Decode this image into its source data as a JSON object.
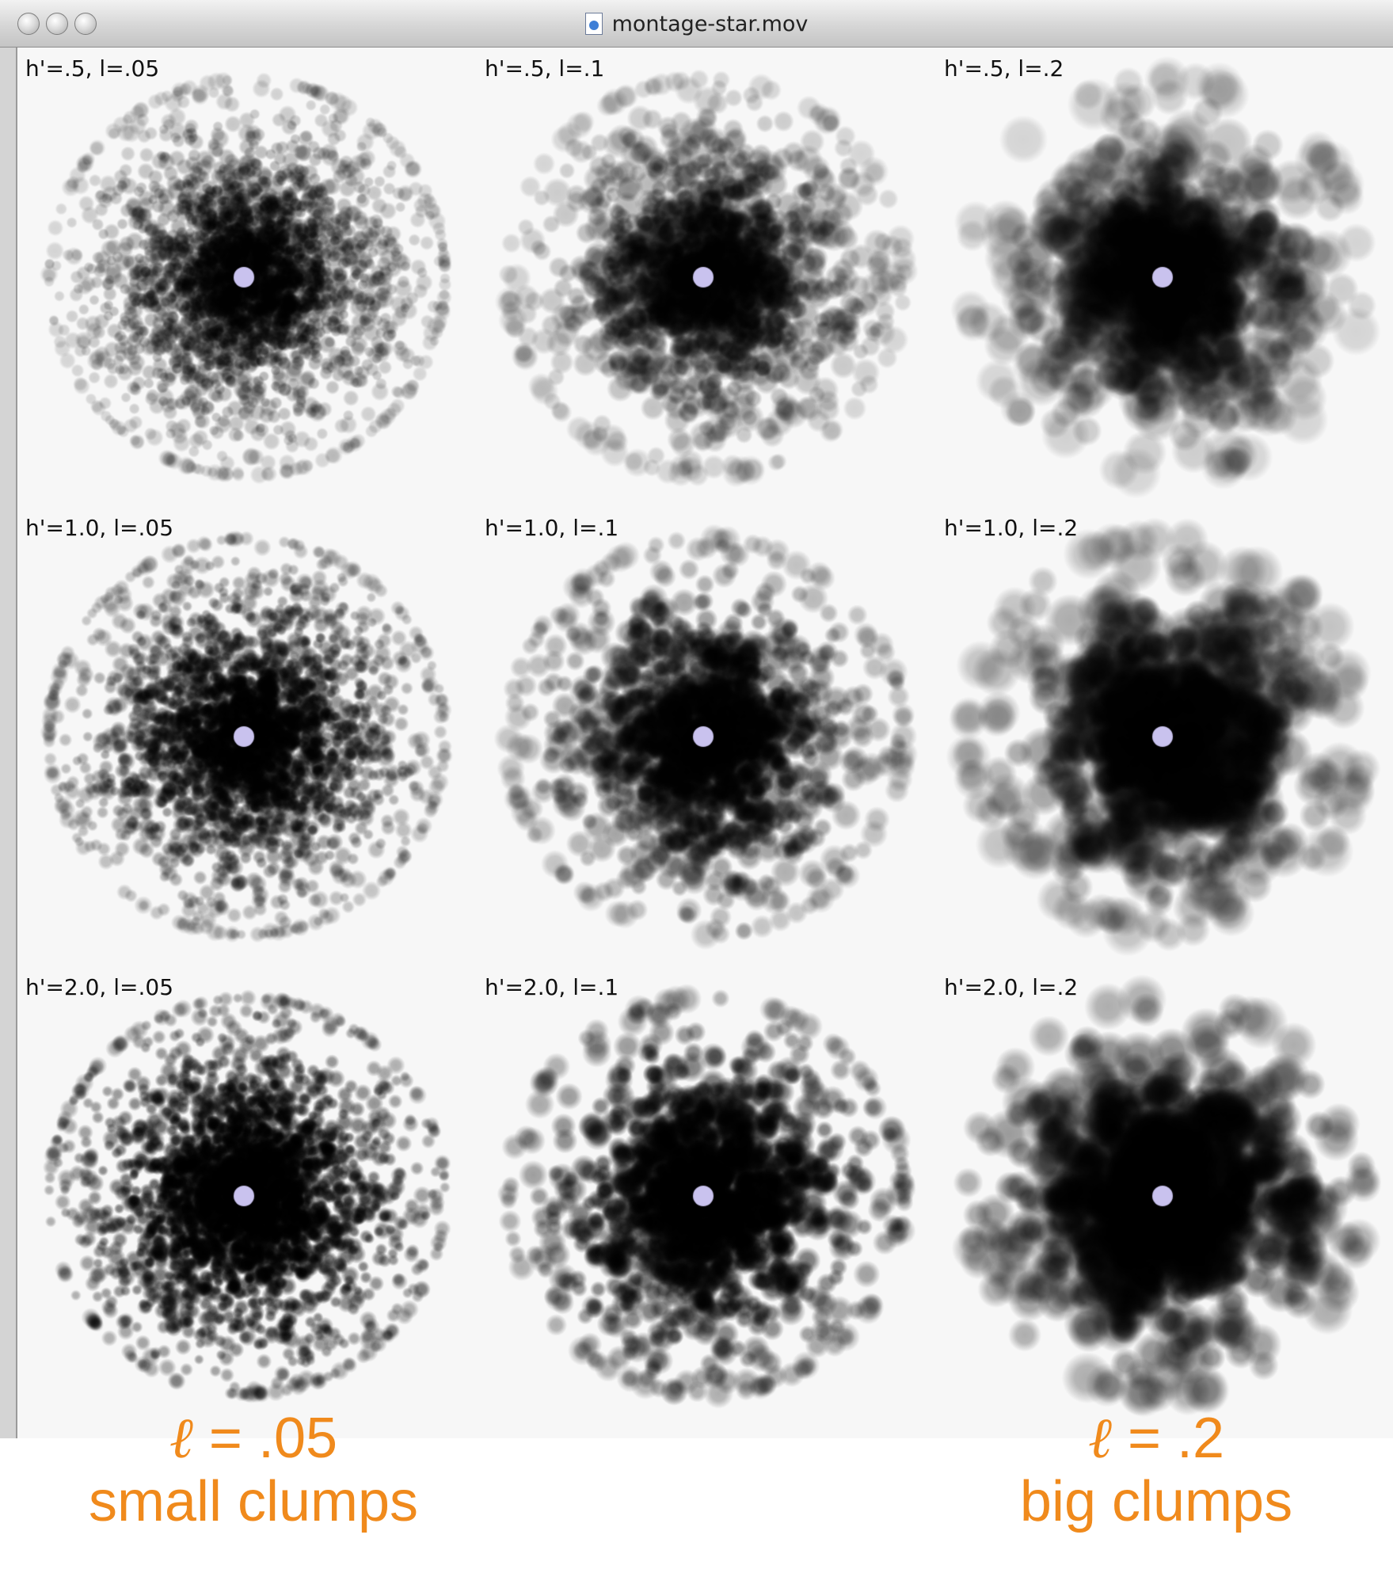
{
  "window": {
    "title": "montage-star.mov",
    "buttons": [
      "close",
      "minimize",
      "zoom"
    ]
  },
  "panels": [
    {
      "label": "h'=.5, l=.05",
      "h": 0.5,
      "l": 0.05
    },
    {
      "label": "h'=.5, l=.1",
      "h": 0.5,
      "l": 0.1
    },
    {
      "label": "h'=.5, l=.2",
      "h": 0.5,
      "l": 0.2
    },
    {
      "label": "h'=1.0, l=.05",
      "h": 1.0,
      "l": 0.05
    },
    {
      "label": "h'=1.0, l=.1",
      "h": 1.0,
      "l": 0.1
    },
    {
      "label": "h'=1.0, l=.2",
      "h": 1.0,
      "l": 0.2
    },
    {
      "label": "h'=2.0, l=.05",
      "h": 2.0,
      "l": 0.05
    },
    {
      "label": "h'=2.0, l=.1",
      "h": 2.0,
      "l": 0.1
    },
    {
      "label": "h'=2.0, l=.2",
      "h": 2.0,
      "l": 0.2
    }
  ],
  "captions": {
    "left": {
      "symbol": "ℓ",
      "value": " = .05",
      "text": "small clumps"
    },
    "right": {
      "symbol": "ℓ",
      "value": " = .2",
      "text": "big clumps"
    }
  },
  "colors": {
    "caption": "#f08a1c",
    "star": "#c9c2ee",
    "particles": "#000000",
    "background": "#f7f7f7"
  }
}
